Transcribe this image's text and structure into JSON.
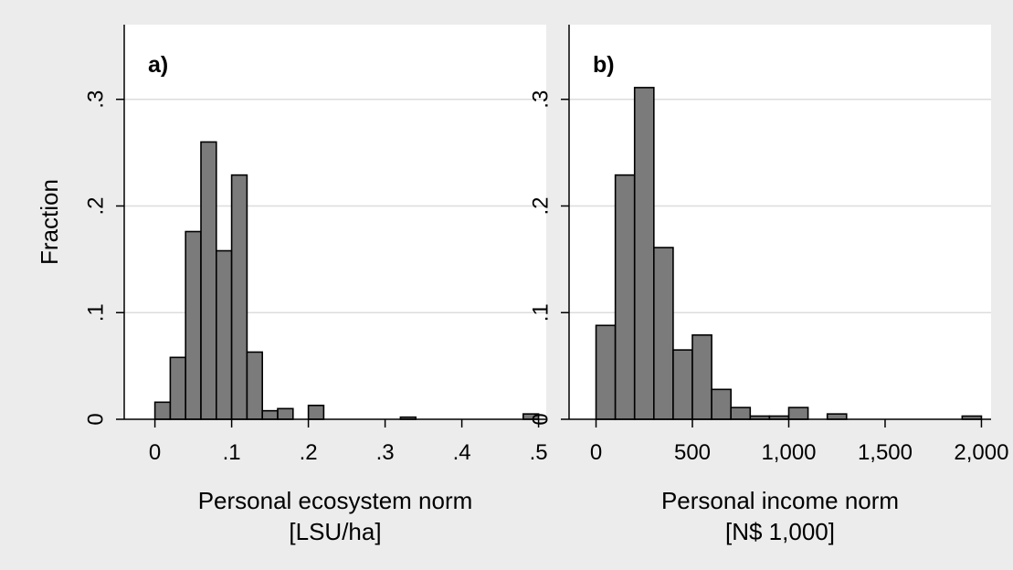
{
  "figure": {
    "ylabel": "Fraction",
    "y_ticks": [
      0,
      0.1,
      0.2,
      0.3
    ],
    "y_tick_labels": [
      "0",
      ".1",
      ".2",
      ".3"
    ],
    "ylim": [
      0,
      0.37
    ]
  },
  "chart_data": [
    {
      "type": "bar",
      "panel_label": "a)",
      "title": "",
      "xlabel": "Personal ecosystem norm",
      "xunit": "[LSU/ha]",
      "ylabel": "Fraction",
      "xlim": [
        -0.04,
        0.51
      ],
      "ylim": [
        0,
        0.37
      ],
      "x_ticks": [
        0,
        0.1,
        0.2,
        0.3,
        0.4,
        0.5
      ],
      "x_tick_labels": [
        "0",
        ".1",
        ".2",
        ".3",
        ".4",
        ".5"
      ],
      "bin_width": 0.02,
      "bin_edges": [
        0,
        0.02,
        0.04,
        0.06,
        0.08,
        0.1,
        0.12,
        0.14,
        0.16,
        0.2,
        0.32,
        0.48
      ],
      "values": [
        0.016,
        0.058,
        0.176,
        0.26,
        0.158,
        0.229,
        0.063,
        0.008,
        0.01,
        0.013,
        0.002,
        0.005
      ],
      "grid": true
    },
    {
      "type": "bar",
      "panel_label": "b)",
      "title": "",
      "xlabel": "Personal income norm",
      "xunit": "[N$ 1,000]",
      "ylabel": "Fraction",
      "xlim": [
        -140,
        2050
      ],
      "ylim": [
        0,
        0.37
      ],
      "x_ticks": [
        0,
        500,
        1000,
        1500,
        2000
      ],
      "x_tick_labels": [
        "0",
        "500",
        "1,000",
        "1,500",
        "2,000"
      ],
      "bin_width": 100,
      "bin_edges": [
        0,
        100,
        200,
        300,
        400,
        500,
        600,
        700,
        800,
        900,
        1000,
        1200,
        1900
      ],
      "values": [
        0.088,
        0.229,
        0.311,
        0.161,
        0.065,
        0.079,
        0.028,
        0.011,
        0.003,
        0.003,
        0.011,
        0.005,
        0.003
      ],
      "grid": true
    }
  ]
}
